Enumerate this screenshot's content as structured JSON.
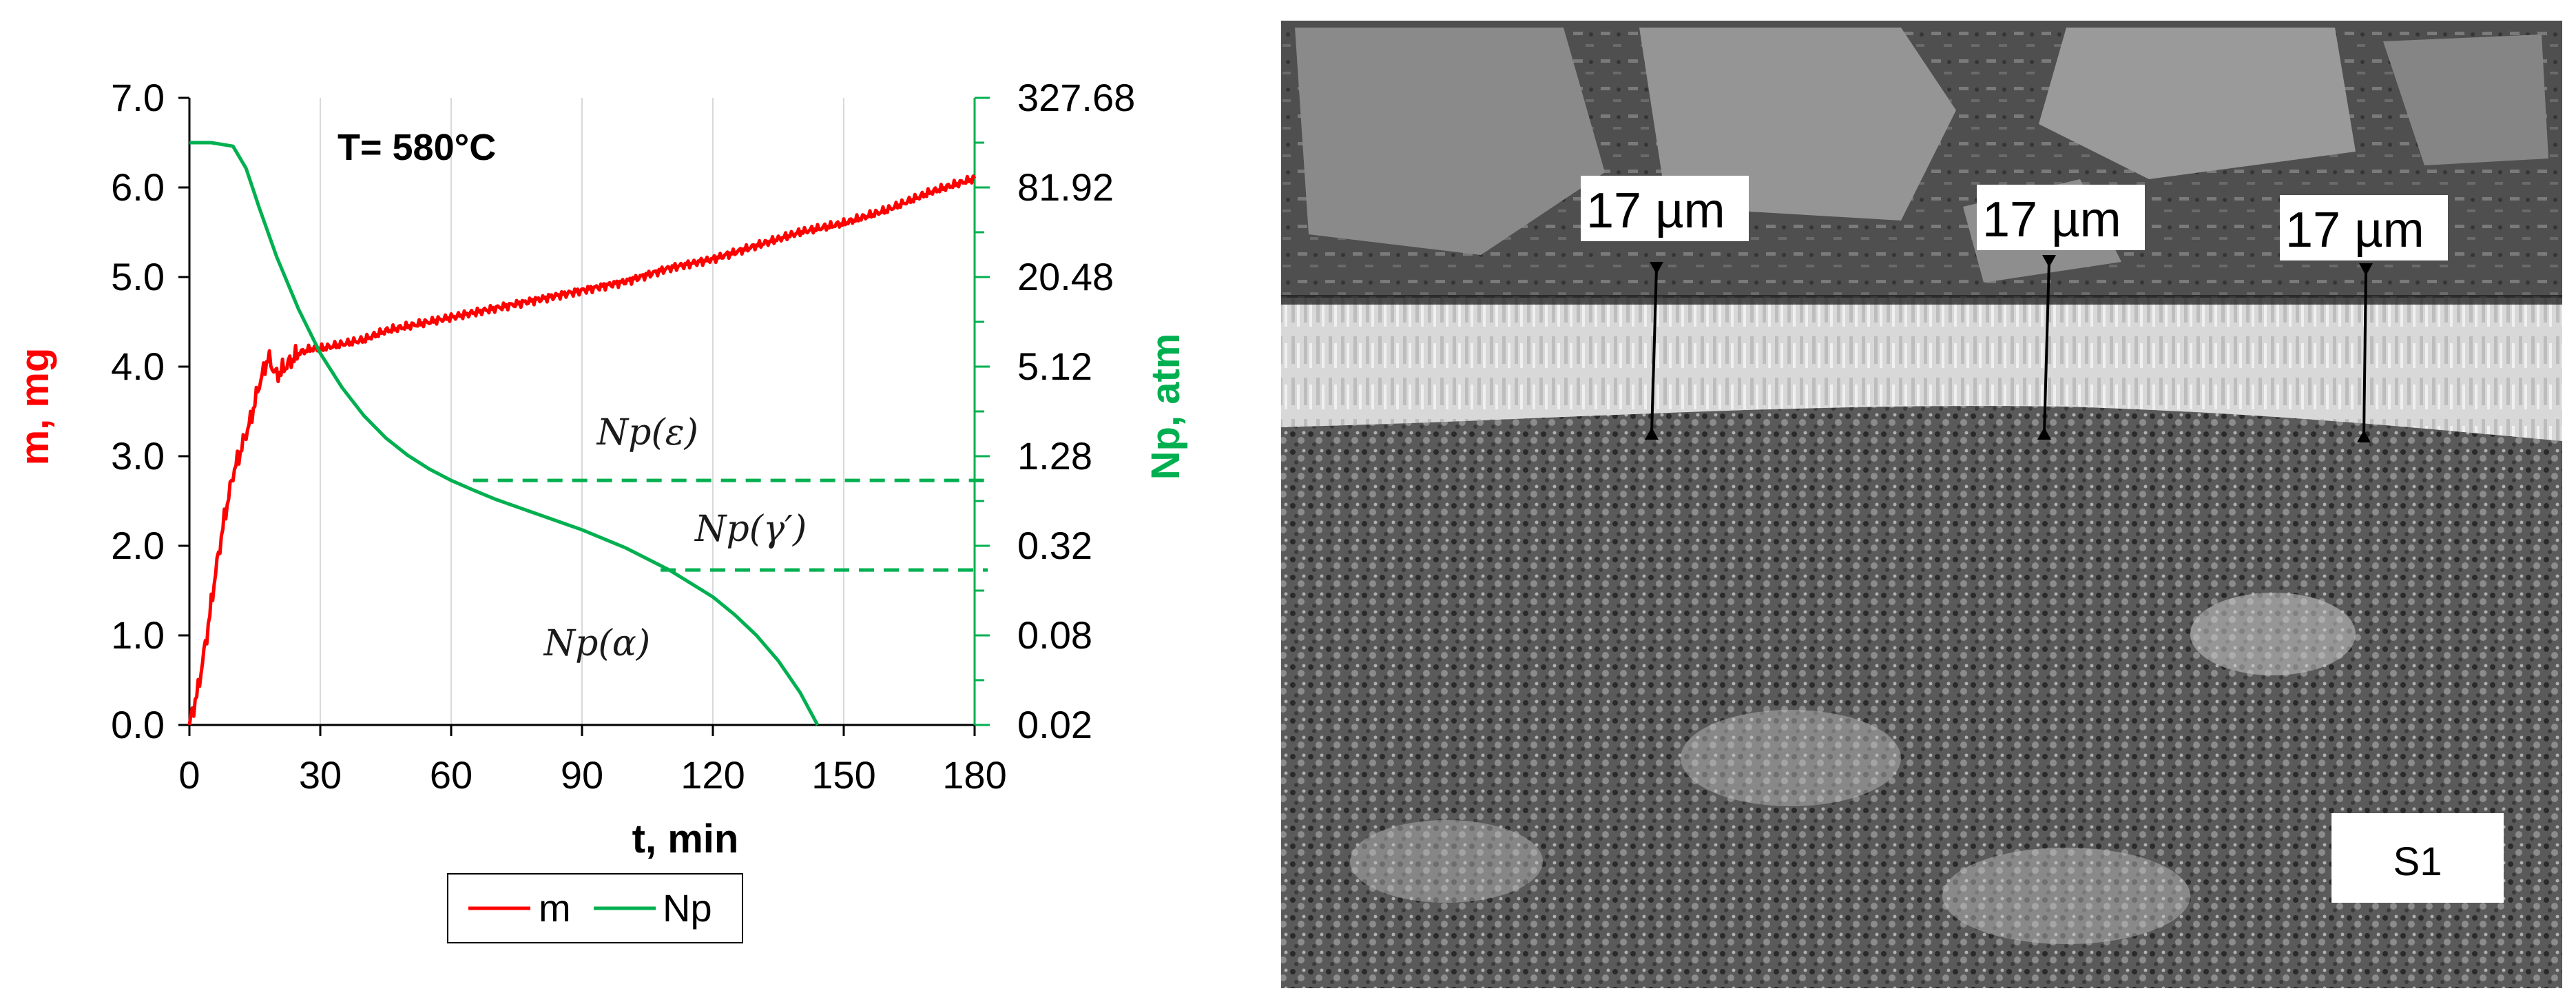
{
  "chart_data": {
    "type": "line",
    "title": "",
    "annotation_temperature": "T= 580°C",
    "xlabel": "t, min",
    "ylabel_left": "m, mg",
    "ylabel_right": "Np, atm",
    "x_ticks": [
      "0",
      "30",
      "60",
      "90",
      "120",
      "150",
      "180"
    ],
    "y_left_ticks": [
      "0.0",
      "1.0",
      "2.0",
      "3.0",
      "4.0",
      "5.0",
      "6.0",
      "7.0"
    ],
    "y_right_ticks": [
      "0.02",
      "0.08",
      "0.32",
      "1.28",
      "5.12",
      "20.48",
      "81.92",
      "327.68"
    ],
    "xlim": [
      0,
      180
    ],
    "ylim_left": [
      0,
      7
    ],
    "ylim_right_log2": [
      0.02,
      327.68
    ],
    "grid": "vertical-major",
    "legend_position": "bottom-center",
    "series": [
      {
        "name": "m",
        "axis": "left",
        "color": "#ff0000",
        "x": [
          0,
          2,
          4,
          6,
          8,
          10,
          12,
          14,
          16,
          18,
          20,
          22,
          25,
          28,
          30,
          35,
          40,
          45,
          50,
          60,
          70,
          80,
          90,
          100,
          110,
          120,
          130,
          140,
          150,
          160,
          170,
          180
        ],
        "y": [
          0.0,
          0.4,
          1.0,
          1.7,
          2.3,
          2.8,
          3.1,
          3.4,
          3.8,
          4.1,
          3.9,
          4.0,
          4.15,
          4.2,
          4.2,
          4.25,
          4.3,
          4.4,
          4.45,
          4.55,
          4.65,
          4.75,
          4.85,
          4.95,
          5.1,
          5.2,
          5.35,
          5.5,
          5.6,
          5.75,
          5.95,
          6.1
        ]
      },
      {
        "name": "Np",
        "axis": "right",
        "color": "#00b050",
        "x": [
          0,
          5,
          10,
          13,
          16,
          20,
          25,
          30,
          35,
          40,
          45,
          50,
          55,
          60,
          65,
          70,
          80,
          90,
          100,
          110,
          120,
          125,
          130,
          135,
          140,
          144
        ],
        "y": [
          163.8,
          163.8,
          155,
          110,
          60,
          28,
          12.5,
          6.3,
          3.7,
          2.4,
          1.7,
          1.3,
          1.05,
          0.88,
          0.76,
          0.66,
          0.52,
          0.41,
          0.31,
          0.22,
          0.145,
          0.11,
          0.08,
          0.054,
          0.033,
          0.02
        ]
      }
    ],
    "thresholds": [
      {
        "label": "Np(ε)",
        "value": 0.88,
        "x_start": 65,
        "x_end": 183
      },
      {
        "label": "Np(γ′)",
        "value": 0.22,
        "x_start": 108,
        "x_end": 183
      }
    ],
    "curve_labels": [
      {
        "label": "Np(α)",
        "x": 86,
        "value": 0.09
      }
    ]
  },
  "micrograph": {
    "thickness_labels": [
      "17 µm",
      "17 µm",
      "17 µm"
    ],
    "sample_label": "S1"
  },
  "legend": {
    "items": [
      "m",
      "Np"
    ]
  },
  "colors": {
    "m": "#ff0000",
    "Np": "#00b050",
    "axis_right": "#00b050",
    "axis_left_title": "#ff0000"
  }
}
